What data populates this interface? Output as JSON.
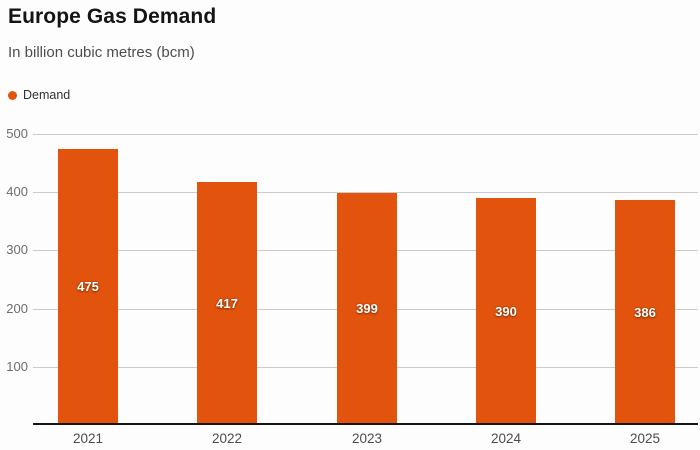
{
  "chart_data": {
    "type": "bar",
    "title": "Europe Gas Demand",
    "subtitle": "In billion cubic metres (bcm)",
    "categories": [
      "2021",
      "2022",
      "2023",
      "2024",
      "2025"
    ],
    "series": [
      {
        "name": "Demand",
        "values": [
          475,
          417,
          399,
          390,
          386
        ]
      }
    ],
    "bar_labels": [
      "475",
      "417",
      "399",
      "390",
      "386"
    ],
    "ylim": [
      0,
      500
    ],
    "yticks": [
      100,
      200,
      300,
      400,
      500
    ],
    "grid": true,
    "legend_position": "top-left",
    "xlabel": "",
    "ylabel": "",
    "bar_color": "#e2540e",
    "colors": {
      "grid": "#cbcbcb",
      "axis": "#141414",
      "ytick_text": "#6d6d6d",
      "xtick_text": "#4c4c4c",
      "title_text": "#141414",
      "subtitle_text": "#4e4e4e",
      "bar_label_text": "#ffffff"
    }
  }
}
